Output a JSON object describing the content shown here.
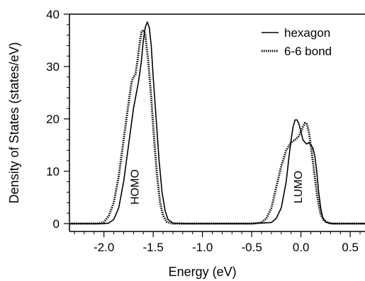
{
  "chart_data": {
    "type": "line",
    "xlabel": "Energy (eV)",
    "ylabel": "Density of States (states/eV)",
    "xlim": [
      -2.35,
      0.65
    ],
    "ylim": [
      -1.5,
      40
    ],
    "x_ticks": [
      -2.0,
      -1.5,
      -1.0,
      -0.5,
      0.0,
      0.5
    ],
    "x_tick_labels": [
      "-2.0",
      "-1.5",
      "-1.0",
      "-0.5",
      "0.0",
      "0.5"
    ],
    "y_ticks": [
      0,
      10,
      20,
      30,
      40
    ],
    "y_tick_labels": [
      "0",
      "10",
      "20",
      "30",
      "40"
    ],
    "legend_position": "top-right",
    "grid": false,
    "annotations": [
      {
        "text": "HOMO",
        "x": -1.65,
        "y": 7,
        "rotation": -90
      },
      {
        "text": "LUMO",
        "x": 0.01,
        "y": 7,
        "rotation": -90
      }
    ],
    "series": [
      {
        "name": "hexagon",
        "style": "solid",
        "color": "#000000",
        "points": [
          [
            -2.35,
            0
          ],
          [
            -2.0,
            0
          ],
          [
            -1.95,
            0.1
          ],
          [
            -1.9,
            0.8
          ],
          [
            -1.85,
            3
          ],
          [
            -1.8,
            8
          ],
          [
            -1.75,
            15
          ],
          [
            -1.7,
            22
          ],
          [
            -1.67,
            25
          ],
          [
            -1.65,
            27
          ],
          [
            -1.62,
            31
          ],
          [
            -1.6,
            35
          ],
          [
            -1.58,
            37.5
          ],
          [
            -1.56,
            38.5
          ],
          [
            -1.54,
            37.5
          ],
          [
            -1.52,
            34
          ],
          [
            -1.5,
            28
          ],
          [
            -1.47,
            20
          ],
          [
            -1.44,
            12
          ],
          [
            -1.41,
            6
          ],
          [
            -1.38,
            2.5
          ],
          [
            -1.35,
            0.8
          ],
          [
            -1.3,
            0.1
          ],
          [
            -1.2,
            0
          ],
          [
            -0.5,
            0
          ],
          [
            -0.3,
            0.2
          ],
          [
            -0.25,
            1
          ],
          [
            -0.2,
            3
          ],
          [
            -0.15,
            8
          ],
          [
            -0.12,
            13
          ],
          [
            -0.1,
            16
          ],
          [
            -0.08,
            18.5
          ],
          [
            -0.06,
            19.8
          ],
          [
            -0.04,
            19.8
          ],
          [
            -0.02,
            19
          ],
          [
            0.0,
            17.5
          ],
          [
            0.02,
            16
          ],
          [
            0.04,
            15.5
          ],
          [
            0.06,
            15.2
          ],
          [
            0.08,
            15.5
          ],
          [
            0.1,
            15
          ],
          [
            0.12,
            14.5
          ],
          [
            0.14,
            13
          ],
          [
            0.16,
            10
          ],
          [
            0.18,
            6
          ],
          [
            0.2,
            3
          ],
          [
            0.22,
            1.2
          ],
          [
            0.25,
            0.3
          ],
          [
            0.3,
            0
          ],
          [
            0.65,
            0
          ]
        ]
      },
      {
        "name": "6-6 bond",
        "style": "dotted",
        "color": "#000000",
        "points": [
          [
            -2.35,
            0
          ],
          [
            -2.05,
            0
          ],
          [
            -2.0,
            0.3
          ],
          [
            -1.95,
            1.5
          ],
          [
            -1.9,
            4
          ],
          [
            -1.85,
            9
          ],
          [
            -1.8,
            16
          ],
          [
            -1.75,
            23
          ],
          [
            -1.72,
            27
          ],
          [
            -1.7,
            28
          ],
          [
            -1.68,
            28.5
          ],
          [
            -1.66,
            31
          ],
          [
            -1.64,
            34
          ],
          [
            -1.62,
            36.5
          ],
          [
            -1.6,
            37
          ],
          [
            -1.58,
            36
          ],
          [
            -1.55,
            31
          ],
          [
            -1.52,
            24
          ],
          [
            -1.49,
            16
          ],
          [
            -1.46,
            9
          ],
          [
            -1.43,
            4
          ],
          [
            -1.4,
            1.5
          ],
          [
            -1.36,
            0.3
          ],
          [
            -1.3,
            0
          ],
          [
            -0.5,
            0
          ],
          [
            -0.4,
            0.2
          ],
          [
            -0.35,
            1
          ],
          [
            -0.3,
            3
          ],
          [
            -0.25,
            7
          ],
          [
            -0.2,
            11
          ],
          [
            -0.15,
            14
          ],
          [
            -0.1,
            15.5
          ],
          [
            -0.06,
            16
          ],
          [
            -0.03,
            16.5
          ],
          [
            0.0,
            17.5
          ],
          [
            0.02,
            18.5
          ],
          [
            0.04,
            19.2
          ],
          [
            0.06,
            19
          ],
          [
            0.08,
            17.5
          ],
          [
            0.1,
            15
          ],
          [
            0.12,
            12
          ],
          [
            0.14,
            9
          ],
          [
            0.16,
            6
          ],
          [
            0.18,
            3.5
          ],
          [
            0.2,
            1.8
          ],
          [
            0.23,
            0.7
          ],
          [
            0.27,
            0.2
          ],
          [
            0.32,
            0
          ],
          [
            0.65,
            0
          ]
        ]
      }
    ]
  }
}
